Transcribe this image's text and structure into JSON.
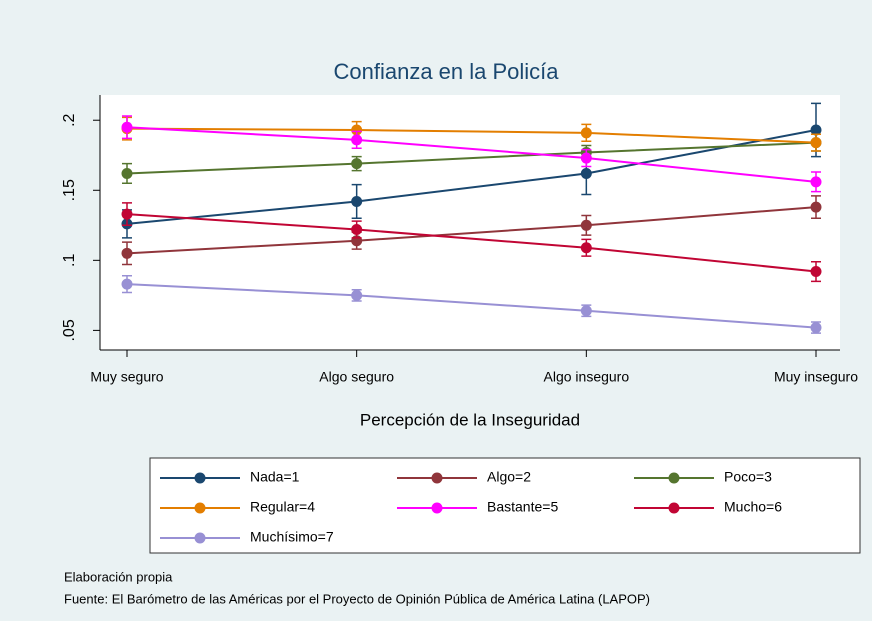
{
  "chart_data": {
    "type": "line",
    "title": "Confianza en la Policía",
    "x_label": "Percepción de la Inseguridad",
    "categories": [
      "Muy seguro",
      "Algo seguro",
      "Algo inseguro",
      "Muy inseguro"
    ],
    "ylim": [
      0.036,
      0.218
    ],
    "yticks": [
      {
        "value": 0.05,
        "label": ".05"
      },
      {
        "value": 0.1,
        "label": ".1"
      },
      {
        "value": 0.15,
        "label": ".15"
      },
      {
        "value": 0.2,
        "label": ".2"
      }
    ],
    "series": [
      {
        "name": "Nada=1",
        "color": "#1a476f",
        "values": [
          0.126,
          0.142,
          0.162,
          0.193
        ],
        "errors": [
          0.01,
          0.012,
          0.015,
          0.019
        ]
      },
      {
        "name": "Algo=2",
        "color": "#90353b",
        "values": [
          0.105,
          0.114,
          0.125,
          0.138
        ],
        "errors": [
          0.008,
          0.006,
          0.007,
          0.008
        ]
      },
      {
        "name": "Poco=3",
        "color": "#55752f",
        "values": [
          0.162,
          0.169,
          0.177,
          0.184
        ],
        "errors": [
          0.007,
          0.005,
          0.005,
          0.006
        ]
      },
      {
        "name": "Regular=4",
        "color": "#e37e00",
        "values": [
          0.194,
          0.193,
          0.191,
          0.184
        ],
        "errors": [
          0.008,
          0.006,
          0.006,
          0.006
        ]
      },
      {
        "name": "Bastante=5",
        "color": "#ff00ff",
        "values": [
          0.195,
          0.186,
          0.173,
          0.156
        ],
        "errors": [
          0.008,
          0.006,
          0.006,
          0.007
        ]
      },
      {
        "name": "Mucho=6",
        "color": "#c10534",
        "values": [
          0.133,
          0.122,
          0.109,
          0.092
        ],
        "errors": [
          0.008,
          0.006,
          0.006,
          0.007
        ]
      },
      {
        "name": "Muchísimo=7",
        "color": "#9890d4",
        "values": [
          0.083,
          0.075,
          0.064,
          0.052
        ],
        "errors": [
          0.006,
          0.004,
          0.004,
          0.004
        ]
      }
    ],
    "notes": [
      "Elaboración propia",
      "Fuente: El Barómetro de las Américas por el Proyecto de Opinión Pública de América Latina (LAPOP)"
    ]
  }
}
